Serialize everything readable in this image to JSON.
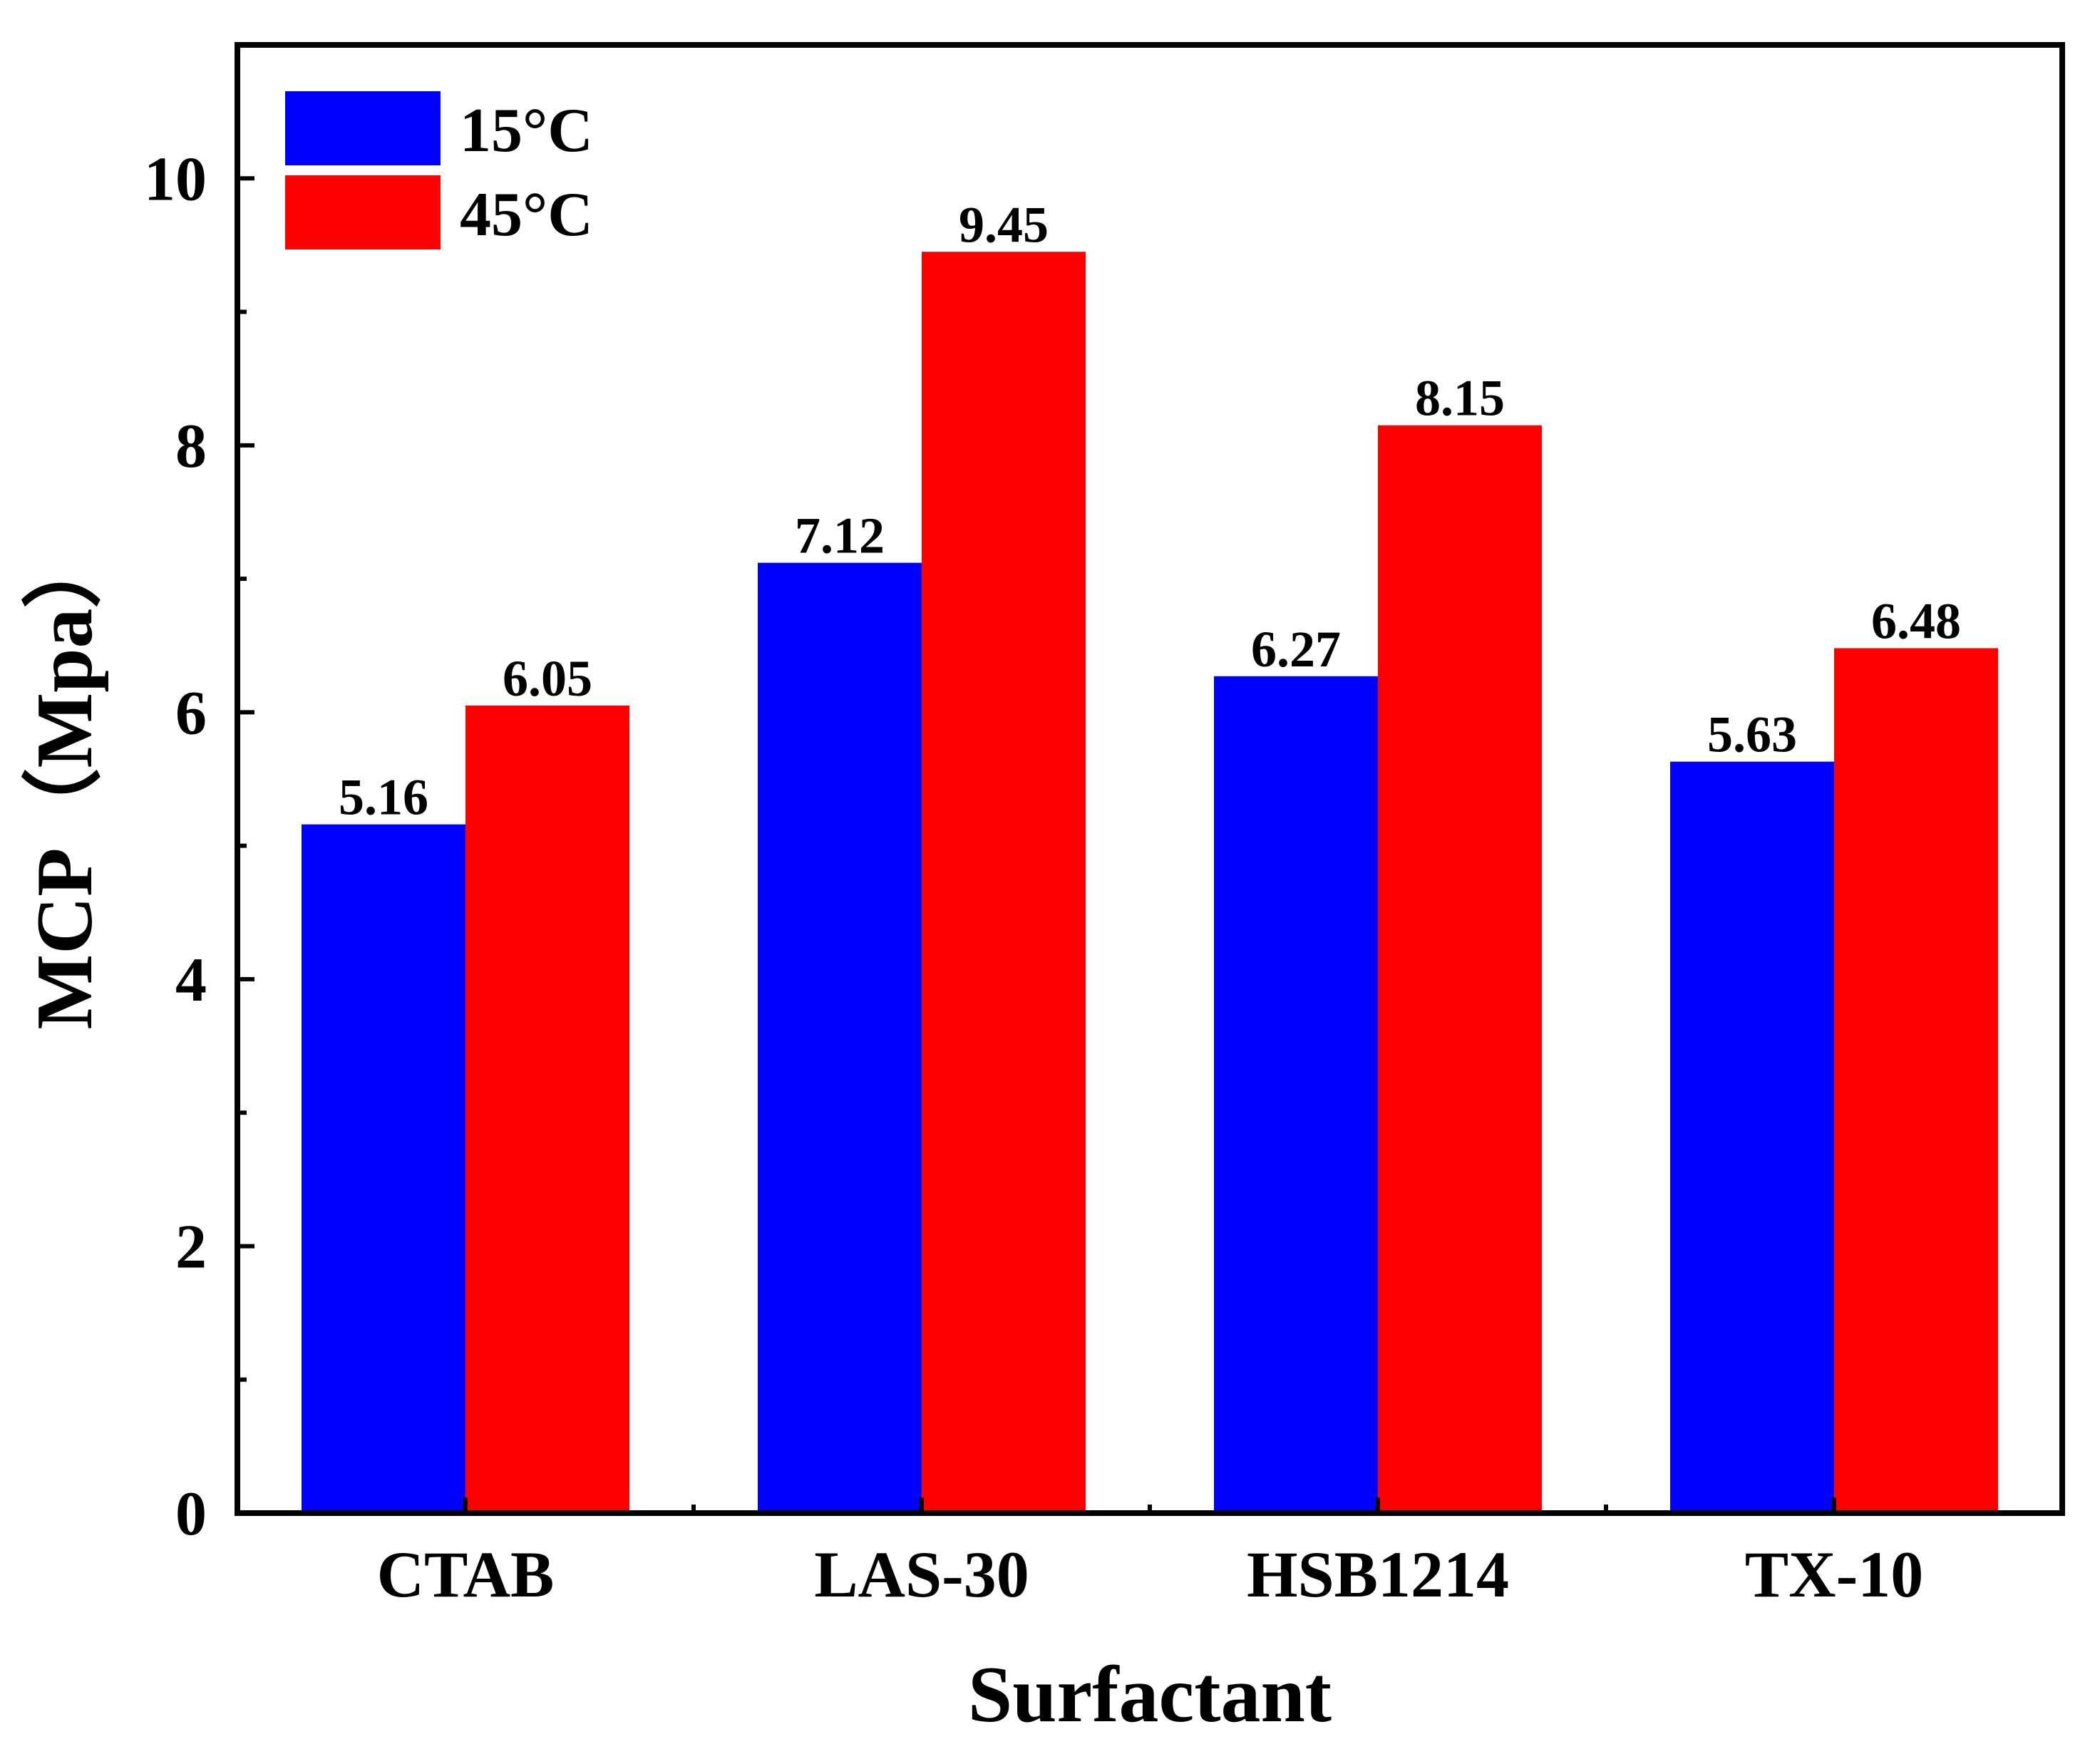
{
  "chart_data": {
    "type": "bar",
    "title": "",
    "xlabel": "Surfactant",
    "ylabel": "MCP（Mpa）",
    "categories": [
      "CTAB",
      "LAS-30",
      "HSB1214",
      "TX-10"
    ],
    "series": [
      {
        "name": "15°C",
        "color": "#0000ff",
        "values": [
          5.16,
          7.12,
          6.27,
          5.63
        ],
        "labels": [
          "5.16",
          "7.12",
          "6.27",
          "5.63"
        ]
      },
      {
        "name": "45°C",
        "color": "#ff0000",
        "values": [
          6.05,
          9.45,
          8.15,
          6.48
        ],
        "labels": [
          "6.05",
          "9.45",
          "8.15",
          "6.48"
        ]
      }
    ],
    "ylim": [
      0,
      11
    ],
    "yticks": [
      0,
      2,
      4,
      6,
      8,
      10
    ],
    "yticks_minor": [
      1,
      3,
      5,
      7,
      9
    ],
    "grid": false,
    "legend_position": "top-left"
  }
}
